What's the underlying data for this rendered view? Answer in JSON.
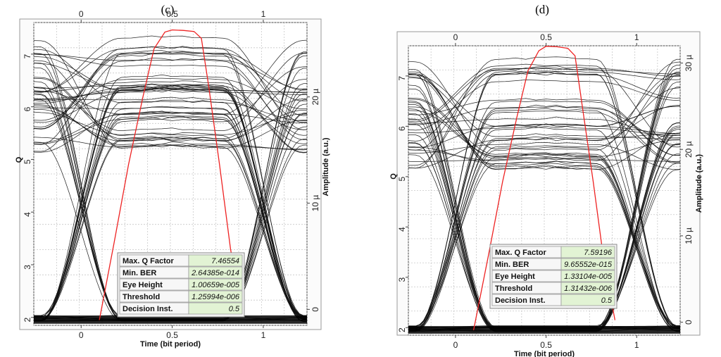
{
  "panels": {
    "c": {
      "label": "(c)"
    },
    "d": {
      "label": "(d)"
    }
  },
  "colors": {
    "eye_trace": "#111111",
    "ber_curve": "#ee2222",
    "table_bg": "#e2f3d4",
    "grid": "#c8c8c8"
  },
  "chart_data": [
    {
      "type": "line",
      "panel": "(c)",
      "xlabel": "Time (bit period)",
      "ylabel_left": "Q",
      "ylabel_right": "Amplitude (a.u.)",
      "xlim": [
        -0.26,
        1.24
      ],
      "ylim_left": [
        1.85,
        7.6
      ],
      "ylim_right": [
        -1.5,
        27.0
      ],
      "x_ticks": [
        "0",
        "0.5",
        "1"
      ],
      "x_tick_values": [
        0,
        0.5,
        1
      ],
      "y_left_ticks": [
        "2",
        "3",
        "4",
        "5",
        "6",
        "7"
      ],
      "y_left_tick_values": [
        2,
        3,
        4,
        5,
        6,
        7
      ],
      "y_right_ticks": [
        "0",
        "10 µ",
        "20 µ"
      ],
      "y_right_tick_values": [
        0,
        10,
        20
      ],
      "series": [
        {
          "name": "Max. Q Factor",
          "x": [
            0.1,
            0.18,
            0.26,
            0.34,
            0.4,
            0.46,
            0.5,
            0.56,
            0.62,
            0.66,
            0.7,
            0.76,
            0.82,
            0.88
          ],
          "y": [
            1.95,
            3.4,
            4.9,
            6.2,
            7.1,
            7.42,
            7.46,
            7.45,
            7.43,
            7.3,
            6.4,
            4.9,
            3.3,
            2.15
          ]
        }
      ],
      "eye": {
        "levels": [
          5.3,
          5.7,
          6.0,
          6.4,
          6.9,
          7.15
        ],
        "crossing_q": 3.9,
        "crossing_x": [
          0.0,
          1.0
        ],
        "floor_q": 1.98
      },
      "table": {
        "rows": [
          {
            "label": "Max. Q Factor",
            "value": "7.46554"
          },
          {
            "label": "Min. BER",
            "value": "2.64385e-014"
          },
          {
            "label": "Eye Height",
            "value": "1.00659e-005"
          },
          {
            "label": "Threshold",
            "value": "1.25994e-006"
          },
          {
            "label": "Decision Inst.",
            "value": "0.5"
          }
        ]
      }
    },
    {
      "type": "line",
      "panel": "(d)",
      "xlabel": "Time (bit period)",
      "ylabel_left": "Q",
      "ylabel_right": "Amplitude (a.u.)",
      "xlim": [
        -0.26,
        1.24
      ],
      "ylim_left": [
        1.85,
        7.6
      ],
      "ylim_right": [
        -1.5,
        32.0
      ],
      "x_ticks": [
        "0",
        "0.5",
        "1"
      ],
      "x_tick_values": [
        0,
        0.5,
        1
      ],
      "y_left_ticks": [
        "2",
        "3",
        "4",
        "5",
        "6",
        "7"
      ],
      "y_left_tick_values": [
        2,
        3,
        4,
        5,
        6,
        7
      ],
      "y_right_ticks": [
        "0",
        "10 µ",
        "20 µ",
        "30 µ"
      ],
      "y_right_tick_values": [
        0,
        10,
        20,
        30
      ],
      "series": [
        {
          "name": "Max. Q Factor",
          "x": [
            0.1,
            0.18,
            0.26,
            0.34,
            0.4,
            0.46,
            0.5,
            0.56,
            0.62,
            0.66,
            0.7,
            0.76,
            0.82,
            0.88
          ],
          "y": [
            1.95,
            3.4,
            4.9,
            6.2,
            7.1,
            7.5,
            7.59,
            7.58,
            7.55,
            7.4,
            6.4,
            4.9,
            3.3,
            2.15
          ]
        }
      ],
      "eye": {
        "levels": [
          5.3,
          5.7,
          6.0,
          6.4,
          6.9,
          7.2
        ],
        "crossing_q": 3.9,
        "crossing_x": [
          0.0,
          1.0
        ],
        "floor_q": 1.98
      },
      "table": {
        "rows": [
          {
            "label": "Max. Q Factor",
            "value": "7.59196"
          },
          {
            "label": "Min. BER",
            "value": "9.65552e-015"
          },
          {
            "label": "Eye Height",
            "value": "1.33104e-005"
          },
          {
            "label": "Threshold",
            "value": "1.31432e-006"
          },
          {
            "label": "Decision Inst.",
            "value": "0.5"
          }
        ]
      }
    }
  ]
}
